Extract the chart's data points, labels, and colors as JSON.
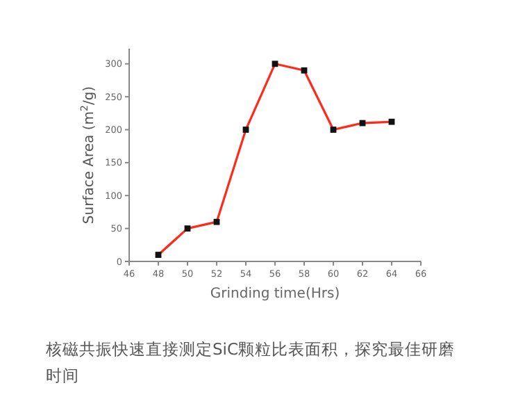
{
  "chart_data": {
    "type": "line",
    "xlabel": "Grinding time(Hrs)",
    "ylabel": "Surface Area (m$^{2}$/g)",
    "x": [
      48,
      50,
      52,
      54,
      56,
      58,
      60,
      62,
      64
    ],
    "series": [
      {
        "color": "#ff2a1a",
        "values": [
          10,
          50,
          60,
          200,
          300,
          290,
          200,
          210,
          212
        ]
      }
    ],
    "marker": "square",
    "xlim": [
      46,
      66
    ],
    "ylim": [
      0,
      323
    ],
    "xticks": [
      46,
      48,
      50,
      52,
      54,
      56,
      58,
      60,
      62,
      64,
      66
    ],
    "yticks": [
      0,
      50,
      100,
      150,
      200,
      250,
      300
    ],
    "grid": false,
    "annotations": [
      "核磁共振快速直接测定SiC颗粒比表面积，探究最佳研磨时间"
    ]
  }
}
